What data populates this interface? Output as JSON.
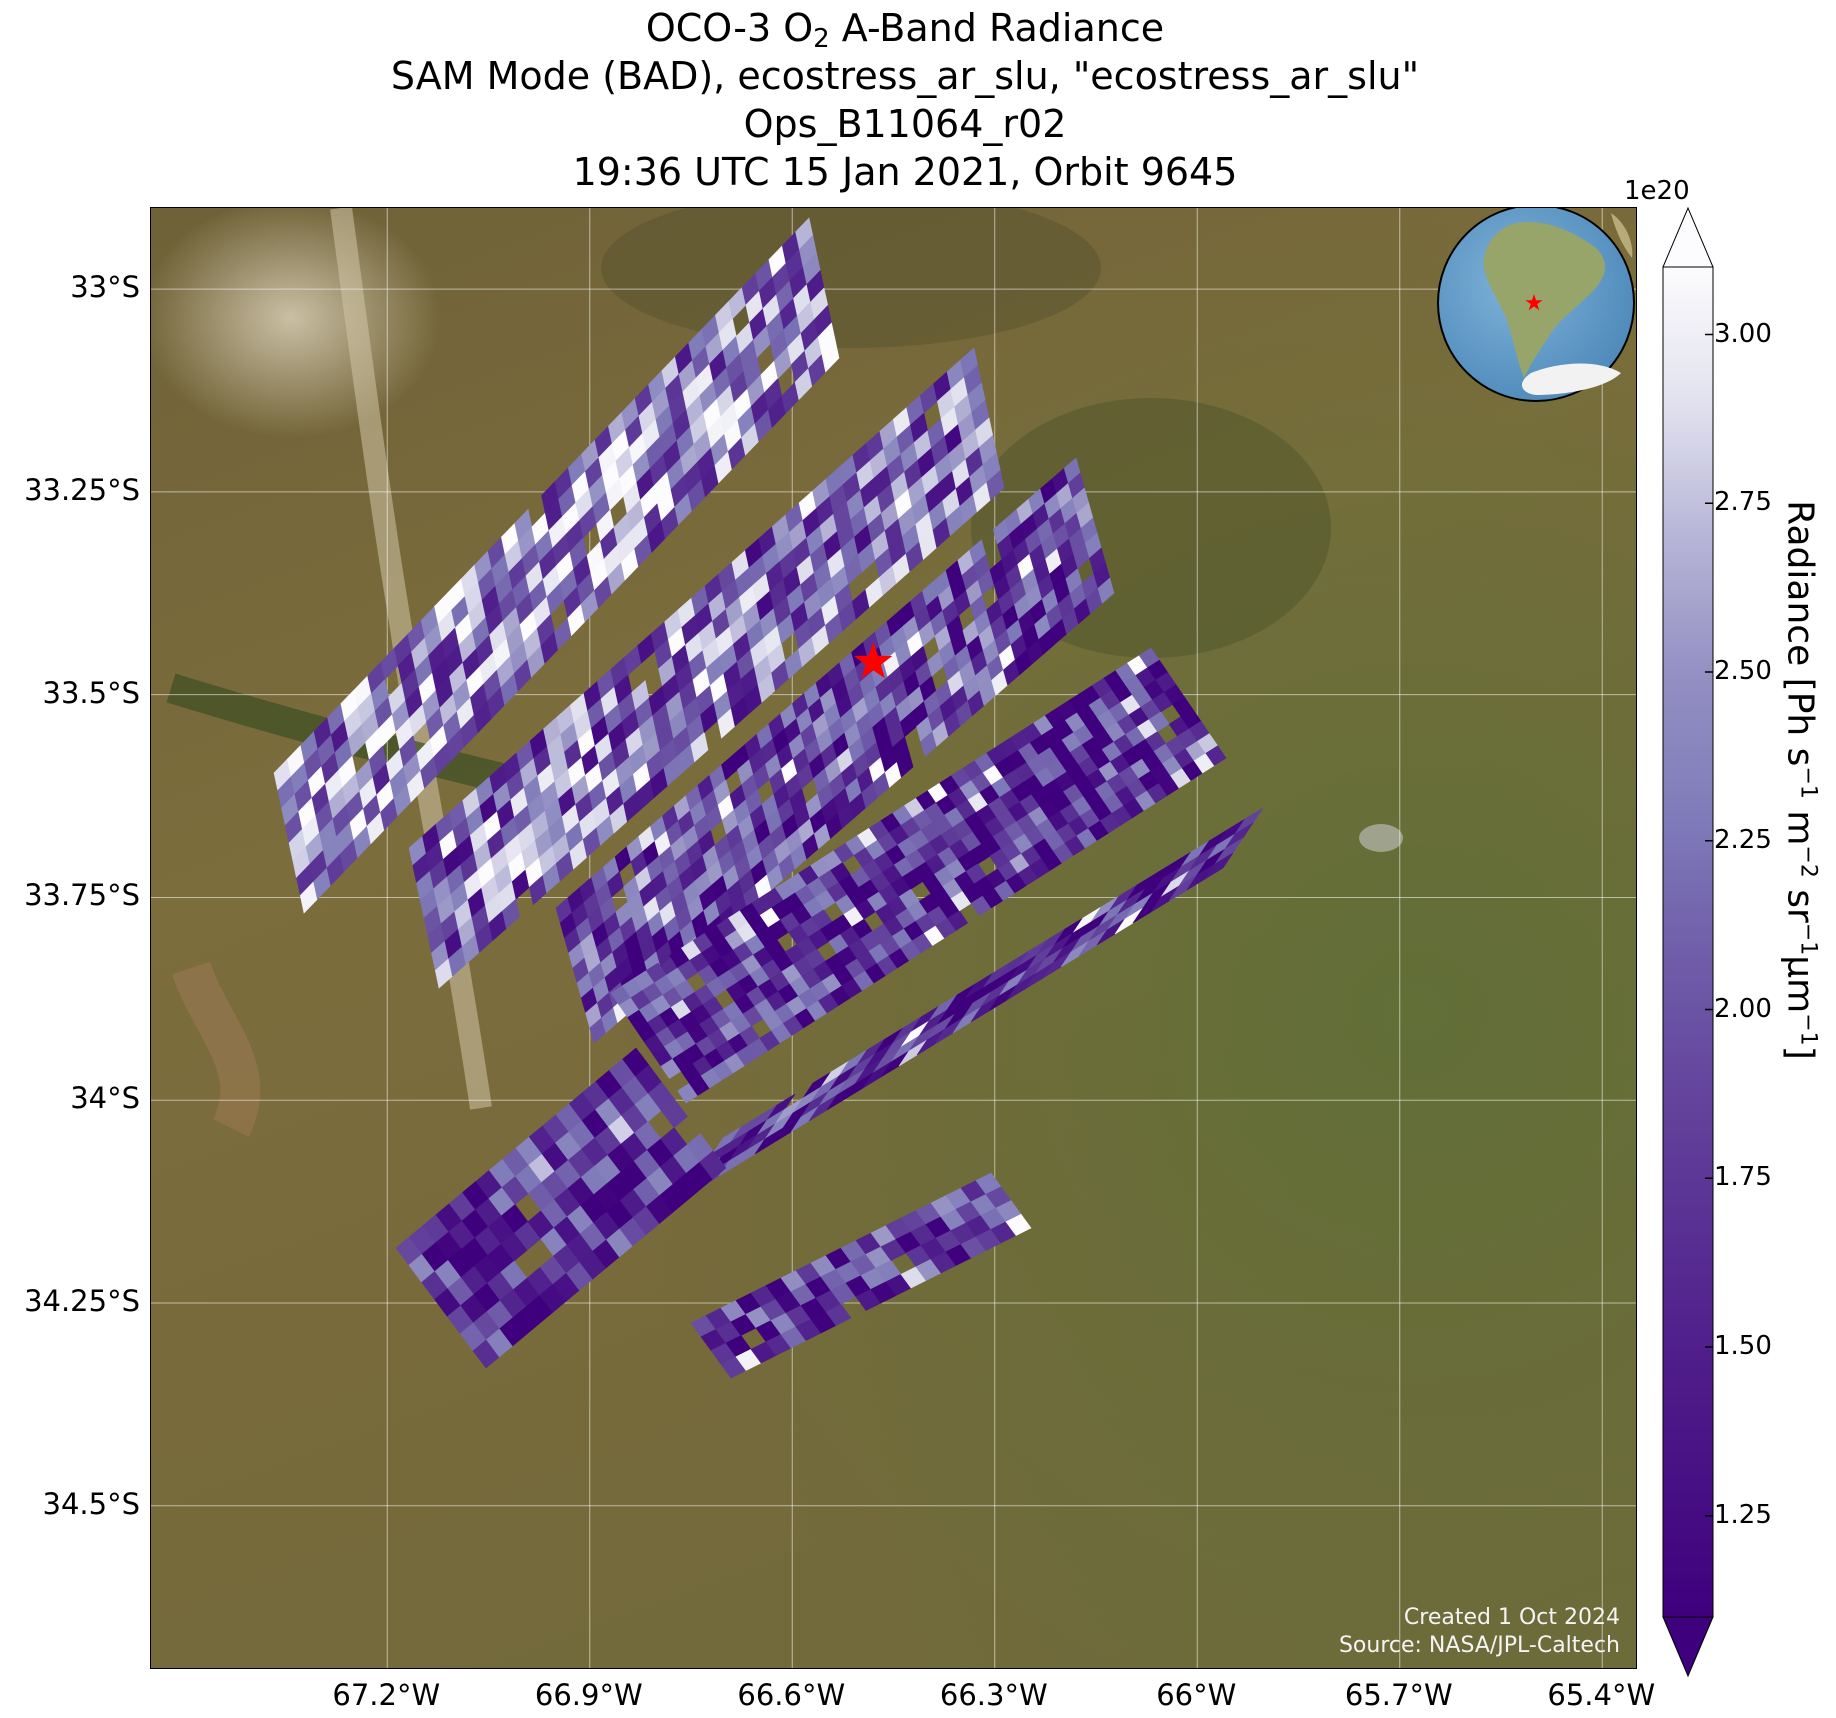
{
  "title": {
    "line1_pre": "OCO-3 O",
    "line1_sub": "2",
    "line1_post": " A-Band Radiance",
    "line2": "SAM Mode (BAD), ecostress_ar_slu, \"ecostress_ar_slu\"",
    "line3": "Ops_B11064_r02",
    "line4": "19:36 UTC 15 Jan 2021, Orbit 9645"
  },
  "map": {
    "lat_ticks": [
      "33°S",
      "33.25°S",
      "33.5°S",
      "33.75°S",
      "34°S",
      "34.25°S",
      "34.5°S"
    ],
    "lon_ticks": [
      "67.2°W",
      "66.9°W",
      "66.6°W",
      "66.3°W",
      "66°W",
      "65.7°W",
      "65.4°W"
    ],
    "lat_values": [
      -33.0,
      -33.25,
      -33.5,
      -33.75,
      -34.0,
      -34.25,
      -34.5
    ],
    "lon_values": [
      -67.2,
      -66.9,
      -66.6,
      -66.3,
      -66.0,
      -65.7,
      -65.4
    ],
    "lat_range": [
      -34.7,
      -32.9
    ],
    "lon_range": [
      -67.55,
      -65.35
    ],
    "grid": true,
    "target_marker": {
      "lat": -33.46,
      "lon": -66.48,
      "color": "#ff0000",
      "icon": "star-icon"
    },
    "credit_line1": "Created 1 Oct 2024",
    "credit_line2": "Source: NASA/JPL-Caltech"
  },
  "colorbar": {
    "colormap": "Purples_r",
    "min": 1.1,
    "max": 3.1,
    "ticks": [
      "1.25",
      "1.50",
      "1.75",
      "2.00",
      "2.25",
      "2.50",
      "2.75",
      "3.00"
    ],
    "tick_values": [
      1.25,
      1.5,
      1.75,
      2.0,
      2.25,
      2.5,
      2.75,
      3.0
    ],
    "exponent": "1e20",
    "extend": "both",
    "label_pre": "Radiance [Ph s",
    "label_sup1": "−1",
    "label_mid1": " m",
    "label_sup2": "−2",
    "label_mid2": " sr",
    "label_sup3": "−1",
    "label_mid3": "μm",
    "label_sup4": "−1",
    "label_post": "]"
  },
  "inset_globe": {
    "region": "South America",
    "marker": "star-icon",
    "marker_color": "#ff0000"
  }
}
